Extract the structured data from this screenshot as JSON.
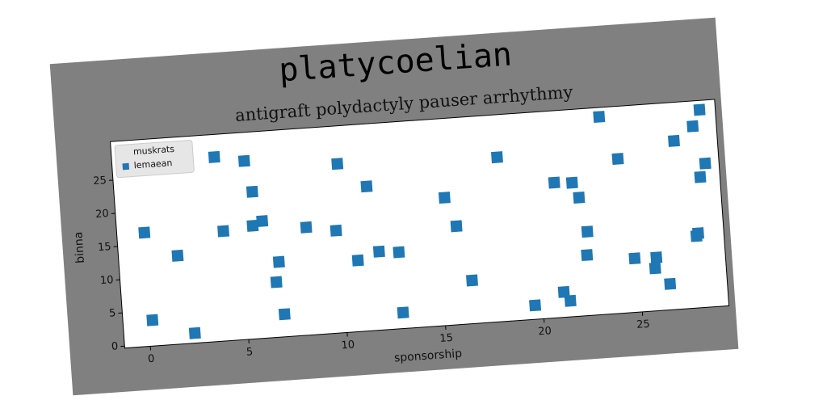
{
  "chart_data": {
    "type": "scatter",
    "title": "platycoelian",
    "subtitle": "antigraft polydactyly pauser arrhythmy",
    "x_label": "sponsorship",
    "y_label": "binna",
    "legend_title": "muskrats",
    "legend": "upper left",
    "series": [
      {
        "name": "lemaean",
        "color": "#1f77b4",
        "x": [
          0.1,
          0.2,
          1.7,
          2.3,
          3.9,
          4.1,
          5.4,
          5.7,
          5.6,
          6.1,
          6.8,
          6.6,
          6.9,
          8.3,
          9.8,
          10.1,
          10.8,
          11.5,
          11.9,
          12.9,
          12.9,
          15.4,
          15.9,
          16.5,
          18.2,
          19.6,
          21.0,
          21.1,
          21.4,
          21.9,
          22.2,
          22.5,
          22.4,
          23.5,
          24.3,
          24.8,
          25.9,
          25.8,
          26.5,
          27.2,
          28.2,
          28.6,
          28.1,
          28.0,
          28.4,
          28.7
        ],
        "values": [
          16.8,
          3.6,
          13.0,
          1.2,
          27.4,
          16.2,
          26.5,
          21.8,
          16.7,
          17.3,
          11.0,
          8.0,
          3.1,
          15.9,
          15.1,
          25.1,
          10.4,
          21.4,
          11.5,
          11.2,
          2.1,
          18.9,
          14.5,
          6.2,
          24.4,
          1.8,
          20.0,
          3.5,
          2.1,
          19.8,
          17.5,
          12.3,
          8.8,
          29.4,
          22.9,
          7.8,
          7.7,
          6.1,
          3.6,
          25.0,
          27.0,
          29.4,
          10.9,
          10.5,
          19.3,
          21.3
        ]
      }
    ],
    "xlim": [
      -1.3,
      29.4
    ],
    "ylim": [
      -0.3,
      30.8
    ],
    "xticks": [
      0,
      5,
      10,
      15,
      20,
      25
    ],
    "yticks": [
      0,
      5,
      10,
      15,
      20,
      25
    ]
  }
}
